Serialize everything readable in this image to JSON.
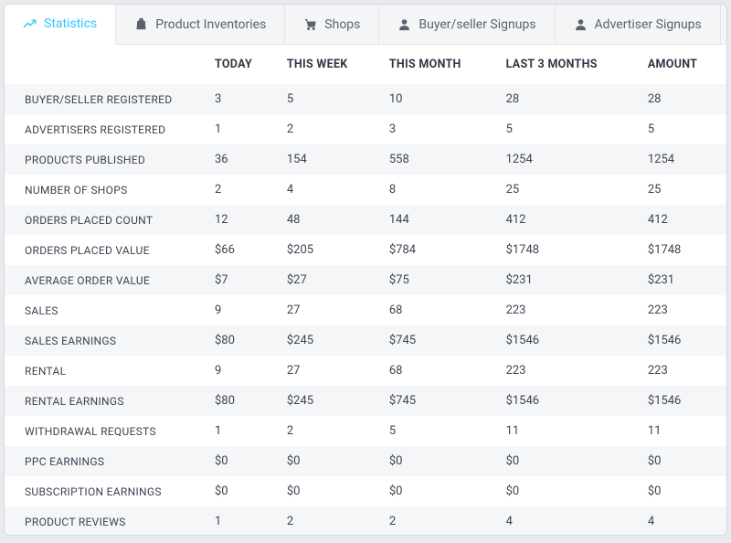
{
  "tabs": [
    {
      "label": "Statistics",
      "icon": "trend-icon",
      "active": true
    },
    {
      "label": "Product Inventories",
      "icon": "bag-icon",
      "active": false
    },
    {
      "label": "Shops",
      "icon": "cart-icon",
      "active": false
    },
    {
      "label": "Buyer/seller Signups",
      "icon": "person-icon",
      "active": false
    },
    {
      "label": "Advertiser Signups",
      "icon": "person-icon",
      "active": false
    }
  ],
  "table": {
    "columns": [
      "",
      "TODAY",
      "THIS WEEK",
      "THIS MONTH",
      "LAST 3 MONTHS",
      "AMOUNT"
    ],
    "rows": [
      [
        "BUYER/SELLER REGISTERED",
        "3",
        "5",
        "10",
        "28",
        "28"
      ],
      [
        "ADVERTISERS REGISTERED",
        "1",
        "2",
        "3",
        "5",
        "5"
      ],
      [
        "PRODUCTS PUBLISHED",
        "36",
        "154",
        "558",
        "1254",
        "1254"
      ],
      [
        "NUMBER OF SHOPS",
        "2",
        "4",
        "8",
        "25",
        "25"
      ],
      [
        "ORDERS PLACED COUNT",
        "12",
        "48",
        "144",
        "412",
        "412"
      ],
      [
        "ORDERS PLACED VALUE",
        "$66",
        "$205",
        "$784",
        "$1748",
        "$1748"
      ],
      [
        "AVERAGE ORDER VALUE",
        "$7",
        "$27",
        "$75",
        "$231",
        "$231"
      ],
      [
        "SALES",
        "9",
        "27",
        "68",
        "223",
        "223"
      ],
      [
        "SALES EARNINGS",
        "$80",
        "$245",
        "$745",
        "$1546",
        "$1546"
      ],
      [
        "RENTAL",
        "9",
        "27",
        "68",
        "223",
        "223"
      ],
      [
        "RENTAL EARNINGS",
        "$80",
        "$245",
        "$745",
        "$1546",
        "$1546"
      ],
      [
        "WITHDRAWAL REQUESTS",
        "1",
        "2",
        "5",
        "11",
        "11"
      ],
      [
        "PPC EARNINGS",
        "$0",
        "$0",
        "$0",
        "$0",
        "$0"
      ],
      [
        "SUBSCRIPTION EARNINGS",
        "$0",
        "$0",
        "$0",
        "$0",
        "$0"
      ],
      [
        "PRODUCT REVIEWS",
        "1",
        "2",
        "2",
        "4",
        "4"
      ]
    ]
  },
  "colors": {
    "accent": "#32c5ff",
    "text": "#3c4452",
    "muted": "#5a6270",
    "row_stripe": "#f5f6f8",
    "panel_bg": "#f4f5f7",
    "border": "#e2e5e9"
  }
}
